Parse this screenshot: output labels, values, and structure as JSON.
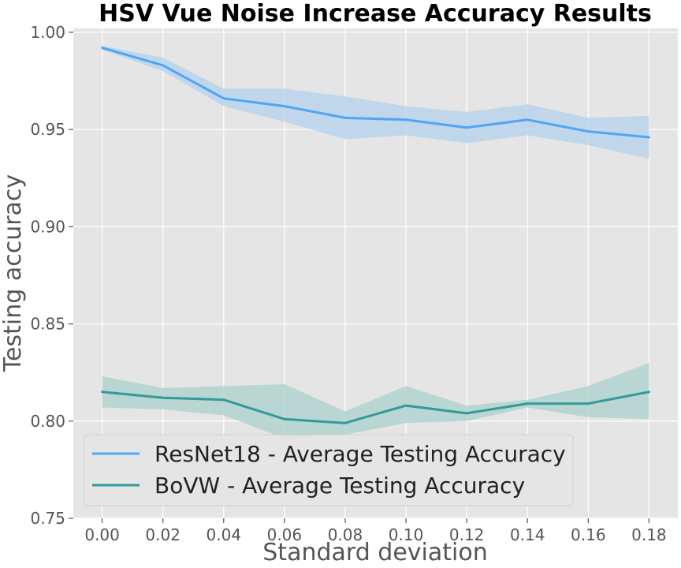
{
  "chart_data": {
    "type": "line",
    "title": "HSV Vue Noise Increase Accuracy Results",
    "xlabel": "Standard deviation",
    "ylabel": "Testing accuracy",
    "x": [
      0.0,
      0.02,
      0.04,
      0.06,
      0.08,
      0.1,
      0.12,
      0.14,
      0.16,
      0.18
    ],
    "x_tick_labels": [
      "0.00",
      "0.02",
      "0.04",
      "0.06",
      "0.08",
      "0.10",
      "0.12",
      "0.14",
      "0.16",
      "0.18"
    ],
    "y_tick_values": [
      0.75,
      0.8,
      0.85,
      0.9,
      0.95,
      1.0
    ],
    "y_tick_labels": [
      "0.75",
      "0.80",
      "0.85",
      "0.90",
      "0.95",
      "1.00"
    ],
    "xlim": [
      -0.0095,
      0.1895
    ],
    "ylim": [
      0.75,
      1.002
    ],
    "grid": true,
    "legend_position": "lower-left",
    "background_color": "#e5e5e5",
    "series": [
      {
        "name": "ResNet18 - Average Testing Accuracy",
        "color": "#4da6f5",
        "band_color": "#b9d3ec",
        "values": [
          0.992,
          0.983,
          0.966,
          0.962,
          0.956,
          0.955,
          0.951,
          0.955,
          0.949,
          0.946
        ],
        "lower": [
          0.991,
          0.98,
          0.962,
          0.954,
          0.945,
          0.947,
          0.943,
          0.947,
          0.942,
          0.935
        ],
        "upper": [
          0.993,
          0.987,
          0.971,
          0.971,
          0.967,
          0.962,
          0.959,
          0.963,
          0.956,
          0.957
        ]
      },
      {
        "name": "BoVW - Average Testing Accuracy",
        "color": "#339999",
        "band_color": "#b2d3d0",
        "values": [
          0.815,
          0.812,
          0.811,
          0.801,
          0.799,
          0.808,
          0.804,
          0.809,
          0.809,
          0.815
        ],
        "lower": [
          0.807,
          0.806,
          0.803,
          0.791,
          0.793,
          0.799,
          0.8,
          0.807,
          0.802,
          0.801
        ],
        "upper": [
          0.823,
          0.817,
          0.818,
          0.819,
          0.805,
          0.818,
          0.808,
          0.811,
          0.818,
          0.83
        ]
      }
    ]
  }
}
